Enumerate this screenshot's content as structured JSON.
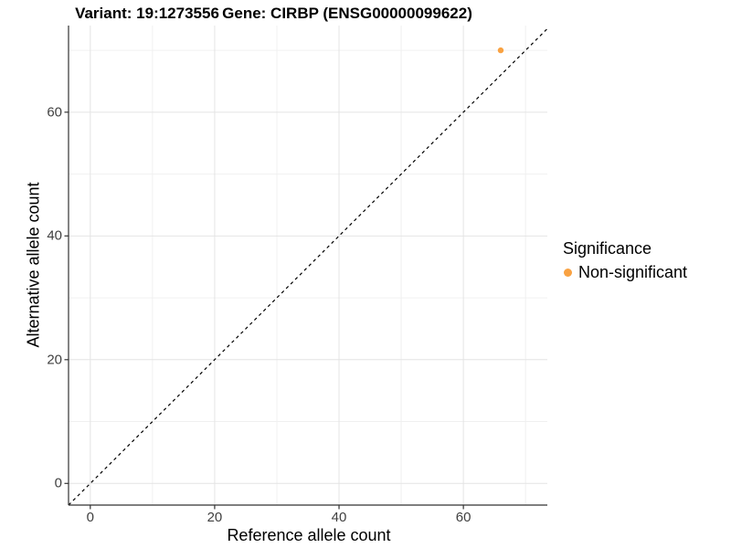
{
  "titles": {
    "variant": "Variant: 19:1273556",
    "gene": "Gene: CIRBP (ENSG00000099622)"
  },
  "chart_data": {
    "type": "scatter",
    "title": "Variant: 19:1273556 — Gene: CIRBP (ENSG00000099622)",
    "xlabel": "Reference allele count",
    "ylabel": "Alternative allele count",
    "xlim": [
      -3.5,
      73.5
    ],
    "ylim": [
      -3.5,
      74
    ],
    "xticks": [
      0,
      20,
      40,
      60
    ],
    "yticks": [
      0,
      20,
      40,
      60
    ],
    "x_minor_ticks": [
      10,
      30,
      50,
      70
    ],
    "y_minor_ticks": [
      10,
      30,
      50,
      70
    ],
    "grid": "major and minor, light gray",
    "legend_position": "right",
    "reference_line": {
      "type": "identity",
      "slope": 1,
      "intercept": 0,
      "style": "dashed",
      "color": "#000000"
    },
    "series": [
      {
        "name": "Non-significant",
        "marker": "circle",
        "color": "#F9A242",
        "points": [
          {
            "x": 66,
            "y": 70
          }
        ]
      }
    ]
  },
  "legend": {
    "title": "Significance",
    "items": [
      {
        "label": "Non-significant",
        "color": "#F9A242"
      }
    ]
  },
  "colors": {
    "background": "#FFFFFF",
    "axis_line": "#333333",
    "tick_text": "#404040",
    "grid_major": "#E4E4E4",
    "grid_minor": "#F0F0F0",
    "reference_line": "#000000",
    "point": "#F9A242"
  }
}
